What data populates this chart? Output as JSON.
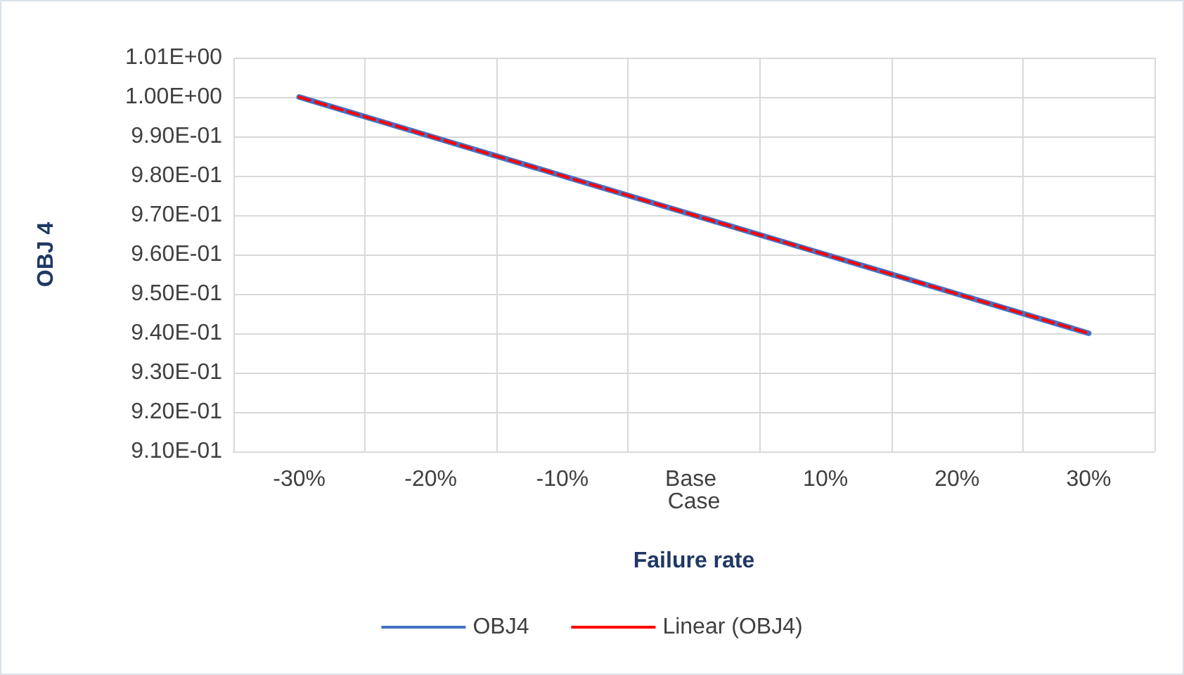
{
  "chart_data": {
    "type": "line",
    "xlabel": "Failure rate",
    "ylabel": "OBJ 4",
    "categories": [
      "-30%",
      "-20%",
      "-10%",
      "Base Case",
      "10%",
      "20%",
      "30%"
    ],
    "series": [
      {
        "name": "OBJ4",
        "color": "#4472c4",
        "values": [
          1.0,
          0.99,
          0.98,
          0.97,
          0.96,
          0.95,
          0.94
        ],
        "line_style": "solid"
      },
      {
        "name": "Linear (OBJ4)",
        "type": "line",
        "color": "#ff0000",
        "x": [
          "-30%",
          "-20%",
          "-10%",
          "Base Case",
          "10%",
          "20%",
          "30%"
        ],
        "values": [
          1.0,
          0.99,
          0.98,
          0.97,
          0.96,
          0.95,
          0.94
        ],
        "line_style": "dashed"
      }
    ],
    "ylim": [
      0.91,
      1.01
    ],
    "yticks": [
      {
        "value": 0.91,
        "label": "9.10E-01"
      },
      {
        "value": 0.92,
        "label": "9.20E-01"
      },
      {
        "value": 0.93,
        "label": "9.30E-01"
      },
      {
        "value": 0.94,
        "label": "9.40E-01"
      },
      {
        "value": 0.95,
        "label": "9.50E-01"
      },
      {
        "value": 0.96,
        "label": "9.60E-01"
      },
      {
        "value": 0.97,
        "label": "9.70E-01"
      },
      {
        "value": 0.98,
        "label": "9.80E-01"
      },
      {
        "value": 0.99,
        "label": "9.90E-01"
      },
      {
        "value": 1.0,
        "label": "1.00E+00"
      },
      {
        "value": 1.01,
        "label": "1.01E+00"
      }
    ],
    "grid": true,
    "legend": "bottom",
    "marker": "none"
  }
}
